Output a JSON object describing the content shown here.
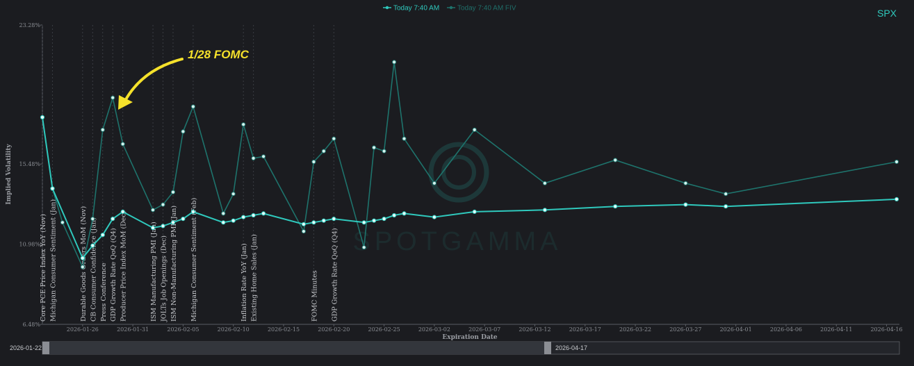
{
  "legend": [
    {
      "label": "Today 7:40 AM",
      "color": "#2fc9bd"
    },
    {
      "label": "Today 7:40 AM FIV",
      "color": "#1e736c"
    }
  ],
  "ticker": "SPX",
  "watermark": "SPOTGAMMA",
  "annotation": "1/28 FOMC",
  "range_selector": {
    "start": "2026-01-22",
    "end": "2026-04-17"
  },
  "chart_data": {
    "type": "line",
    "xlabel": "Expiration Date",
    "ylabel": "Implied Volatility",
    "xlim": [
      "2026-01-22",
      "2026-04-17"
    ],
    "ylim": [
      6.48,
      23.28
    ],
    "y_ticks": [
      "23.28%",
      "15.48%",
      "10.98%",
      "6.48%"
    ],
    "x_ticks": [
      "2026-01-26",
      "2026-01-31",
      "2026-02-05",
      "2026-02-10",
      "2026-02-15",
      "2026-02-20",
      "2026-02-25",
      "2026-03-02",
      "2026-03-07",
      "2026-03-12",
      "2026-03-17",
      "2026-03-22",
      "2026-03-27",
      "2026-04-01",
      "2026-04-06",
      "2026-04-11",
      "2026-04-16"
    ],
    "grid": false,
    "legend_position": "top-center",
    "series": [
      {
        "name": "Today 7:40 AM",
        "color": "#2fc9bd",
        "points": [
          [
            "2026-01-22",
            18.1
          ],
          [
            "2026-01-23",
            14.1
          ],
          [
            "2026-01-26",
            10.2
          ],
          [
            "2026-01-27",
            10.9
          ],
          [
            "2026-01-28",
            11.5
          ],
          [
            "2026-01-29",
            12.4
          ],
          [
            "2026-01-30",
            12.8
          ],
          [
            "2026-02-02",
            11.9
          ],
          [
            "2026-02-03",
            12.0
          ],
          [
            "2026-02-04",
            12.2
          ],
          [
            "2026-02-05",
            12.4
          ],
          [
            "2026-02-06",
            12.8
          ],
          [
            "2026-02-09",
            12.2
          ],
          [
            "2026-02-10",
            12.3
          ],
          [
            "2026-02-11",
            12.5
          ],
          [
            "2026-02-12",
            12.6
          ],
          [
            "2026-02-13",
            12.7
          ],
          [
            "2026-02-17",
            12.1
          ],
          [
            "2026-02-18",
            12.2
          ],
          [
            "2026-02-19",
            12.3
          ],
          [
            "2026-02-20",
            12.4
          ],
          [
            "2026-02-23",
            12.2
          ],
          [
            "2026-02-24",
            12.3
          ],
          [
            "2026-02-25",
            12.4
          ],
          [
            "2026-02-26",
            12.6
          ],
          [
            "2026-02-27",
            12.7
          ],
          [
            "2026-03-02",
            12.5
          ],
          [
            "2026-03-06",
            12.8
          ],
          [
            "2026-03-13",
            12.9
          ],
          [
            "2026-03-20",
            13.1
          ],
          [
            "2026-03-27",
            13.2
          ],
          [
            "2026-03-31",
            13.1
          ],
          [
            "2026-04-17",
            13.5
          ]
        ]
      },
      {
        "name": "Today 7:40 AM FIV",
        "color": "#1e736c",
        "points": [
          [
            "2026-01-22",
            18.1
          ],
          [
            "2026-01-23",
            14.1
          ],
          [
            "2026-01-24",
            12.2
          ],
          [
            "2026-01-26",
            9.7
          ],
          [
            "2026-01-27",
            12.4
          ],
          [
            "2026-01-28",
            17.4
          ],
          [
            "2026-01-29",
            19.2
          ],
          [
            "2026-01-30",
            16.6
          ],
          [
            "2026-02-02",
            12.9
          ],
          [
            "2026-02-03",
            13.2
          ],
          [
            "2026-02-04",
            13.9
          ],
          [
            "2026-02-05",
            17.3
          ],
          [
            "2026-02-06",
            18.7
          ],
          [
            "2026-02-09",
            12.7
          ],
          [
            "2026-02-10",
            13.8
          ],
          [
            "2026-02-11",
            17.7
          ],
          [
            "2026-02-12",
            15.8
          ],
          [
            "2026-02-13",
            15.9
          ],
          [
            "2026-02-17",
            11.7
          ],
          [
            "2026-02-18",
            15.6
          ],
          [
            "2026-02-19",
            16.2
          ],
          [
            "2026-02-20",
            16.9
          ],
          [
            "2026-02-23",
            10.8
          ],
          [
            "2026-02-24",
            16.4
          ],
          [
            "2026-02-25",
            16.2
          ],
          [
            "2026-02-26",
            21.2
          ],
          [
            "2026-02-27",
            16.9
          ],
          [
            "2026-03-02",
            14.4
          ],
          [
            "2026-03-06",
            17.4
          ],
          [
            "2026-03-13",
            14.4
          ],
          [
            "2026-03-20",
            15.7
          ],
          [
            "2026-03-27",
            14.4
          ],
          [
            "2026-03-31",
            13.8
          ],
          [
            "2026-04-17",
            15.6
          ]
        ]
      }
    ],
    "events": [
      {
        "date": "2026-01-22",
        "label": "Core PCE Price Index YoY (Nov)"
      },
      {
        "date": "2026-01-23",
        "label": "Michigan Consumer Sentiment (Jan)"
      },
      {
        "date": "2026-01-26",
        "label": "Durable Goods Orders MoM (Nov)"
      },
      {
        "date": "2026-01-27",
        "label": "CB Consumer Confidence (Jan)"
      },
      {
        "date": "2026-01-28",
        "label": "Press Conference"
      },
      {
        "date": "2026-01-29",
        "label": "GDP Growth Rate QoQ (Q4)"
      },
      {
        "date": "2026-01-30",
        "label": "Producer Price Index MoM (Dec)"
      },
      {
        "date": "2026-02-02",
        "label": "ISM Manufacturing PMI (Jan)"
      },
      {
        "date": "2026-02-03",
        "label": "JOLTs Job Openings (Dec)"
      },
      {
        "date": "2026-02-04",
        "label": "ISM Non-Manufacturing PMI (Jan)"
      },
      {
        "date": "2026-02-06",
        "label": "Michigan Consumer Sentiment (Feb)"
      },
      {
        "date": "2026-02-11",
        "label": "Inflation Rate YoY (Jan)"
      },
      {
        "date": "2026-02-12",
        "label": "Existing Home Sales (Jan)"
      },
      {
        "date": "2026-02-18",
        "label": "FOMC Minutes"
      },
      {
        "date": "2026-02-20",
        "label": "GDP Growth Rate QoQ (Q4)"
      }
    ]
  }
}
